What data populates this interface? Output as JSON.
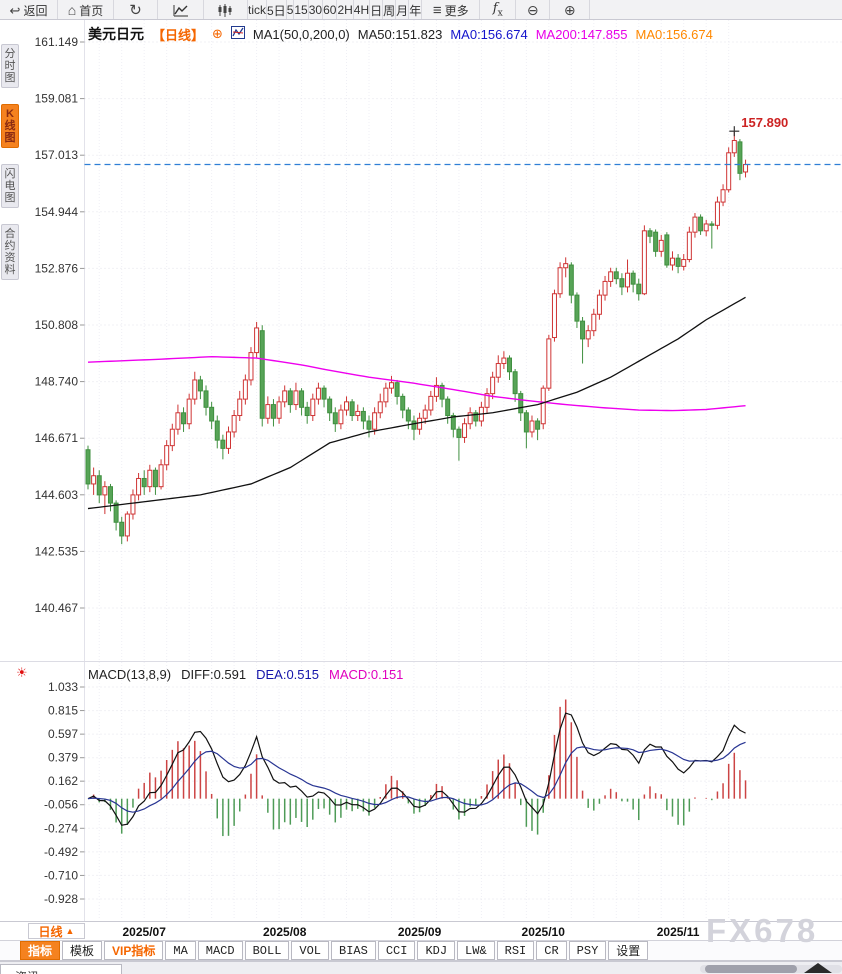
{
  "toolbar": {
    "back": {
      "icon": "↩",
      "label": "返回"
    },
    "home": {
      "icon": "⌂",
      "label": "首页"
    },
    "refresh_icon": "↻",
    "intervals": [
      {
        "key": "tick",
        "label": "tick"
      },
      {
        "key": "5d",
        "label": "5日"
      },
      {
        "key": "5",
        "label": "5"
      },
      {
        "key": "15",
        "label": "15"
      },
      {
        "key": "30",
        "label": "30"
      },
      {
        "key": "60",
        "label": "60"
      },
      {
        "key": "2h",
        "label": "2H"
      },
      {
        "key": "4h",
        "label": "4H"
      },
      {
        "key": "day",
        "label": "日"
      },
      {
        "key": "week",
        "label": "周"
      },
      {
        "key": "month",
        "label": "月"
      },
      {
        "key": "year",
        "label": "年"
      }
    ],
    "more": {
      "icon": "≡",
      "label": "更多"
    },
    "fx_label": "f",
    "fx_sub": "x",
    "zoom_out_icon": "⊖",
    "zoom_in_icon": "⊕"
  },
  "sidebar": {
    "items": [
      {
        "key": "time-chart",
        "label": "分时图",
        "cls": ""
      },
      {
        "key": "kline-chart",
        "label": "K线图",
        "cls": "active"
      },
      {
        "key": "lightning-chart",
        "label": "闪电图",
        "cls": ""
      },
      {
        "key": "contract-info",
        "label": "合约资料",
        "cls": ""
      }
    ]
  },
  "chart_header": {
    "symbol": "美元日元",
    "period": "【日线】",
    "add_icon": "⊕",
    "ma_settings": "MA1(50,0,200,0)",
    "ma50_label": "MA50:151.823",
    "ma0_blue": "MA0:156.674",
    "ma200_label": "MA200:147.855",
    "ma0_orange": "MA0:156.674"
  },
  "macd_header": {
    "title": "MACD(13,8,9)",
    "diff": "DIFF:0.591",
    "dea": "DEA:0.515",
    "macd": "MACD:0.151"
  },
  "indicator_gear_icon": "☀",
  "period_selector": {
    "label": "日线",
    "arrow": "▲"
  },
  "indicator_tabs": [
    {
      "key": "zhibiao",
      "label": "指标",
      "cls": "active"
    },
    {
      "key": "moban",
      "label": "模板",
      "cls": ""
    },
    {
      "key": "vip",
      "label": "VIP指标",
      "cls": "vip"
    },
    {
      "key": "ma",
      "label": "MA",
      "cls": "mono"
    },
    {
      "key": "macd",
      "label": "MACD",
      "cls": "mono"
    },
    {
      "key": "boll",
      "label": "BOLL",
      "cls": "mono"
    },
    {
      "key": "vol",
      "label": "VOL",
      "cls": "mono"
    },
    {
      "key": "bias",
      "label": "BIAS",
      "cls": "mono"
    },
    {
      "key": "cci",
      "label": "CCI",
      "cls": "mono"
    },
    {
      "key": "kdj",
      "label": "KDJ",
      "cls": "mono"
    },
    {
      "key": "lw",
      "label": "LW&",
      "cls": "mono"
    },
    {
      "key": "rsi",
      "label": "RSI",
      "cls": "mono"
    },
    {
      "key": "cr",
      "label": "CR",
      "cls": "mono"
    },
    {
      "key": "psy",
      "label": "PSY",
      "cls": "mono"
    },
    {
      "key": "settings",
      "label": "设置",
      "cls": ""
    }
  ],
  "bottom_strip": {
    "tab_label": "资讯"
  },
  "watermark": "FX678",
  "chart_data": {
    "type": "candlestick+macd",
    "symbol": "美元日元 (USD/JPY) 日线",
    "price_axis": {
      "ticks": [
        "161.149",
        "159.081",
        "157.013",
        "154.944",
        "152.876",
        "150.808",
        "148.740",
        "146.671",
        "144.603",
        "142.535",
        "140.467"
      ]
    },
    "macd_axis": {
      "ticks": [
        "1.033",
        "0.815",
        "0.597",
        "0.379",
        "0.162",
        "-0.056",
        "-0.274",
        "-0.492",
        "-0.710",
        "-0.928"
      ]
    },
    "x_labels": [
      {
        "label": "2025/07",
        "index": 10
      },
      {
        "label": "2025/08",
        "index": 35
      },
      {
        "label": "2025/09",
        "index": 59
      },
      {
        "label": "2025/10",
        "index": 81
      },
      {
        "label": "2025/11",
        "index": 105
      }
    ],
    "current_price": 156.674,
    "high_annotation": {
      "text": "157.890",
      "price": 157.89,
      "index": 115
    },
    "macd_params": {
      "short": 8,
      "long": 13,
      "signal": 9,
      "diff": 0.591,
      "dea": 0.515,
      "macd": 0.151
    },
    "ma50_points": [
      [
        0,
        144.1
      ],
      [
        10,
        144.35
      ],
      [
        20,
        144.6
      ],
      [
        29,
        145.0
      ],
      [
        36,
        145.6
      ],
      [
        43,
        146.5
      ],
      [
        50,
        146.9
      ],
      [
        58,
        147.2
      ],
      [
        65,
        147.45
      ],
      [
        72,
        147.6
      ],
      [
        80,
        147.9
      ],
      [
        87,
        148.35
      ],
      [
        93,
        148.9
      ],
      [
        99,
        149.6
      ],
      [
        105,
        150.3
      ],
      [
        110,
        151.0
      ],
      [
        117,
        151.82
      ]
    ],
    "ma200_points": [
      [
        0,
        149.45
      ],
      [
        12,
        149.55
      ],
      [
        22,
        149.65
      ],
      [
        30,
        149.6
      ],
      [
        38,
        149.35
      ],
      [
        43,
        149.15
      ],
      [
        50,
        148.9
      ],
      [
        58,
        148.68
      ],
      [
        65,
        148.45
      ],
      [
        72,
        148.2
      ],
      [
        78,
        148.05
      ],
      [
        85,
        147.9
      ],
      [
        92,
        147.78
      ],
      [
        98,
        147.7
      ],
      [
        104,
        147.68
      ],
      [
        110,
        147.72
      ],
      [
        117,
        147.86
      ]
    ],
    "candles": [
      [
        146.25,
        146.4,
        144.8,
        145.0
      ],
      [
        145.0,
        145.6,
        144.6,
        145.3
      ],
      [
        145.3,
        145.5,
        144.3,
        144.6
      ],
      [
        144.6,
        145.1,
        143.9,
        144.9
      ],
      [
        144.9,
        145.0,
        144.0,
        144.3
      ],
      [
        144.3,
        144.4,
        143.3,
        143.6
      ],
      [
        143.6,
        143.8,
        142.8,
        143.1
      ],
      [
        143.1,
        144.0,
        142.9,
        143.9
      ],
      [
        143.9,
        144.8,
        143.7,
        144.6
      ],
      [
        144.6,
        145.4,
        144.4,
        145.2
      ],
      [
        145.2,
        145.5,
        144.6,
        144.9
      ],
      [
        144.9,
        145.7,
        144.7,
        145.5
      ],
      [
        145.5,
        145.6,
        144.6,
        144.9
      ],
      [
        144.9,
        145.9,
        144.8,
        145.7
      ],
      [
        145.7,
        146.6,
        145.5,
        146.4
      ],
      [
        146.4,
        147.2,
        146.2,
        147.0
      ],
      [
        147.0,
        147.9,
        146.8,
        147.6
      ],
      [
        147.6,
        147.8,
        146.9,
        147.2
      ],
      [
        147.2,
        148.3,
        147.0,
        148.1
      ],
      [
        148.1,
        149.1,
        147.9,
        148.8
      ],
      [
        148.8,
        148.95,
        148.1,
        148.4
      ],
      [
        148.4,
        148.6,
        147.5,
        147.8
      ],
      [
        147.8,
        148.0,
        147.0,
        147.3
      ],
      [
        147.3,
        147.5,
        146.3,
        146.6
      ],
      [
        146.6,
        146.8,
        145.9,
        146.3
      ],
      [
        146.3,
        147.1,
        146.1,
        146.9
      ],
      [
        146.9,
        147.7,
        146.7,
        147.5
      ],
      [
        147.5,
        148.4,
        147.3,
        148.1
      ],
      [
        148.1,
        149.0,
        147.9,
        148.8
      ],
      [
        148.8,
        150.0,
        148.6,
        149.8
      ],
      [
        149.8,
        150.92,
        149.6,
        150.7
      ],
      [
        150.6,
        150.8,
        147.1,
        147.4
      ],
      [
        147.4,
        148.2,
        147.2,
        147.9
      ],
      [
        147.9,
        148.1,
        147.1,
        147.4
      ],
      [
        147.4,
        148.2,
        147.2,
        148.0
      ],
      [
        148.0,
        148.6,
        147.8,
        148.4
      ],
      [
        148.4,
        148.5,
        147.6,
        147.9
      ],
      [
        147.9,
        148.7,
        147.7,
        148.4
      ],
      [
        148.4,
        148.5,
        147.5,
        147.8
      ],
      [
        147.8,
        148.0,
        147.2,
        147.5
      ],
      [
        147.5,
        148.3,
        147.3,
        148.1
      ],
      [
        148.1,
        148.7,
        147.9,
        148.5
      ],
      [
        148.5,
        148.6,
        147.8,
        148.1
      ],
      [
        148.1,
        148.2,
        147.3,
        147.6
      ],
      [
        147.6,
        147.8,
        146.9,
        147.2
      ],
      [
        147.2,
        147.9,
        147.0,
        147.7
      ],
      [
        147.7,
        148.2,
        147.5,
        148.0
      ],
      [
        148.0,
        148.1,
        147.3,
        147.5
      ],
      [
        147.5,
        147.9,
        147.3,
        147.65
      ],
      [
        147.65,
        147.8,
        147.0,
        147.3
      ],
      [
        147.3,
        147.5,
        146.7,
        147.0
      ],
      [
        147.0,
        147.8,
        146.8,
        147.6
      ],
      [
        147.6,
        148.3,
        147.4,
        148.0
      ],
      [
        148.0,
        148.7,
        147.8,
        148.5
      ],
      [
        148.5,
        148.95,
        148.3,
        148.7
      ],
      [
        148.7,
        148.8,
        147.9,
        148.2
      ],
      [
        148.2,
        148.3,
        147.4,
        147.7
      ],
      [
        147.7,
        147.8,
        147.0,
        147.3
      ],
      [
        147.3,
        147.5,
        146.6,
        147.0
      ],
      [
        147.0,
        147.6,
        146.8,
        147.4
      ],
      [
        147.4,
        147.9,
        147.2,
        147.7
      ],
      [
        147.7,
        148.4,
        147.5,
        148.2
      ],
      [
        148.2,
        148.9,
        148.0,
        148.6
      ],
      [
        148.6,
        148.7,
        147.8,
        148.1
      ],
      [
        148.1,
        148.2,
        147.2,
        147.5
      ],
      [
        147.5,
        147.6,
        146.7,
        147.0
      ],
      [
        147.0,
        147.1,
        145.85,
        146.7
      ],
      [
        146.7,
        147.4,
        146.5,
        147.2
      ],
      [
        147.2,
        147.8,
        147.0,
        147.6
      ],
      [
        147.6,
        147.7,
        147.1,
        147.3
      ],
      [
        147.3,
        148.0,
        147.1,
        147.8
      ],
      [
        147.8,
        148.5,
        147.6,
        148.3
      ],
      [
        148.3,
        149.1,
        148.1,
        148.9
      ],
      [
        148.9,
        149.7,
        148.7,
        149.4
      ],
      [
        149.4,
        149.85,
        149.2,
        149.6
      ],
      [
        149.6,
        149.7,
        148.8,
        149.1
      ],
      [
        149.1,
        149.2,
        148.0,
        148.3
      ],
      [
        148.3,
        148.4,
        147.3,
        147.6
      ],
      [
        147.6,
        147.7,
        146.3,
        146.9
      ],
      [
        146.9,
        147.5,
        146.7,
        147.3
      ],
      [
        147.3,
        147.4,
        146.6,
        147.0
      ],
      [
        147.2,
        148.6,
        147.0,
        148.5
      ],
      [
        148.5,
        150.45,
        148.4,
        150.3
      ],
      [
        150.35,
        152.1,
        150.2,
        151.95
      ],
      [
        151.95,
        153.1,
        151.8,
        152.9
      ],
      [
        152.9,
        153.28,
        152.55,
        153.05
      ],
      [
        153.0,
        153.1,
        151.6,
        151.9
      ],
      [
        151.9,
        152.0,
        150.7,
        150.95
      ],
      [
        150.95,
        151.1,
        149.4,
        150.3
      ],
      [
        150.3,
        150.8,
        150.0,
        150.6
      ],
      [
        150.6,
        151.4,
        150.4,
        151.2
      ],
      [
        151.2,
        152.1,
        151.0,
        151.9
      ],
      [
        151.9,
        152.6,
        151.7,
        152.4
      ],
      [
        152.4,
        152.9,
        152.2,
        152.75
      ],
      [
        152.75,
        152.9,
        152.3,
        152.5
      ],
      [
        152.5,
        152.7,
        151.9,
        152.2
      ],
      [
        152.2,
        153.2,
        152.0,
        152.7
      ],
      [
        152.7,
        152.8,
        152.0,
        152.3
      ],
      [
        152.3,
        152.5,
        151.7,
        151.95
      ],
      [
        151.95,
        154.45,
        151.9,
        154.25
      ],
      [
        154.25,
        154.35,
        153.8,
        154.05
      ],
      [
        154.2,
        154.3,
        153.3,
        153.5
      ],
      [
        153.5,
        154.1,
        153.3,
        153.9
      ],
      [
        154.1,
        154.2,
        152.9,
        153.0
      ],
      [
        153.0,
        153.5,
        152.8,
        153.25
      ],
      [
        153.25,
        153.4,
        152.7,
        152.95
      ],
      [
        152.95,
        153.4,
        152.8,
        153.2
      ],
      [
        153.2,
        154.4,
        153.1,
        154.2
      ],
      [
        154.2,
        154.9,
        154.0,
        154.75
      ],
      [
        154.75,
        154.85,
        154.1,
        154.25
      ],
      [
        154.25,
        154.65,
        154.05,
        154.5
      ],
      [
        154.5,
        154.6,
        153.6,
        154.45
      ],
      [
        154.45,
        155.5,
        154.3,
        155.3
      ],
      [
        155.3,
        155.95,
        155.15,
        155.75
      ],
      [
        155.75,
        157.3,
        155.65,
        157.1
      ],
      [
        157.1,
        157.89,
        156.95,
        157.55
      ],
      [
        157.5,
        157.6,
        156.1,
        156.35
      ],
      [
        156.4,
        156.85,
        156.2,
        156.674
      ]
    ],
    "colors": {
      "up": "#cf3434",
      "down_fill": "#57a457",
      "down_stroke": "#3f8f3f",
      "ma50": "#111111",
      "ma200": "#ee00ee",
      "diff_line": "#111111",
      "dea_line": "#283593",
      "bar_pos": "#cc4444",
      "bar_neg": "#4e9b57",
      "current_line": "#2f7fd6",
      "annotation": "#cc2222",
      "grid": "#e4e4ec"
    }
  }
}
